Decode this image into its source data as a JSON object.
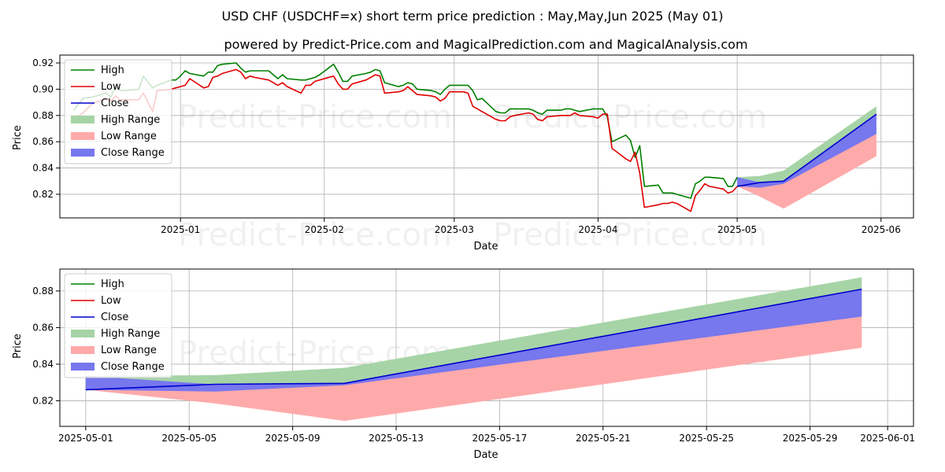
{
  "chart_data": [
    {
      "type": "line",
      "title": "USD CHF (USDCHF=x) short term price prediction : May,May,Jun 2025 (May 01)",
      "subtitle": "powered by Predict-Price.com and MagicalPrediction.com and MagicalAnalysis.com",
      "xlabel": "Date",
      "ylabel": "Price",
      "watermark": "Predict-Price.com",
      "xlim": [
        "2024-12-06",
        "2025-06-08"
      ],
      "ylim": [
        0.802,
        0.926
      ],
      "x_ticks": [
        "2025-01-01",
        "2025-02-01",
        "2025-03-01",
        "2025-04-01",
        "2025-05-01",
        "2025-06-01"
      ],
      "x_tick_labels": [
        "2025-01",
        "2025-02",
        "2025-03",
        "2025-04",
        "2025-05",
        "2025-06"
      ],
      "y_ticks": [
        0.82,
        0.84,
        0.86,
        0.88,
        0.9,
        0.92
      ],
      "y_tick_labels": [
        "0.82",
        "0.84",
        "0.86",
        "0.88",
        "0.90",
        "0.92"
      ],
      "grid": true,
      "legend_position": "top-left",
      "legend": [
        "High",
        "Low",
        "Close",
        "High Range",
        "Low Range",
        "Close Range"
      ],
      "colors": {
        "high": "#008000",
        "low": "#e00000",
        "close": "#0000cc",
        "high_range": "#a6d4a6",
        "low_range": "#ffaaaa",
        "close_range": "#7777ee"
      },
      "series": [
        {
          "name": "High",
          "x": [
            "2024-12-09",
            "2024-12-11",
            "2024-12-13",
            "2024-12-16",
            "2024-12-17",
            "2024-12-18",
            "2024-12-19",
            "2024-12-20",
            "2024-12-23",
            "2024-12-24",
            "2024-12-26",
            "2024-12-27",
            "2024-12-30",
            "2024-12-31",
            "2025-01-01",
            "2025-01-02",
            "2025-01-03",
            "2025-01-06",
            "2025-01-07",
            "2025-01-08",
            "2025-01-09",
            "2025-01-10",
            "2025-01-13",
            "2025-01-14",
            "2025-01-15",
            "2025-01-16",
            "2025-01-17",
            "2025-01-20",
            "2025-01-21",
            "2025-01-22",
            "2025-01-23",
            "2025-01-24",
            "2025-01-27",
            "2025-01-28",
            "2025-01-29",
            "2025-01-30",
            "2025-01-31",
            "2025-02-03",
            "2025-02-04",
            "2025-02-05",
            "2025-02-06",
            "2025-02-07",
            "2025-02-10",
            "2025-02-11",
            "2025-02-12",
            "2025-02-13",
            "2025-02-14",
            "2025-02-17",
            "2025-02-18",
            "2025-02-19",
            "2025-02-20",
            "2025-02-21",
            "2025-02-24",
            "2025-02-25",
            "2025-02-26",
            "2025-02-27",
            "2025-02-28",
            "2025-03-03",
            "2025-03-04",
            "2025-03-05",
            "2025-03-06",
            "2025-03-07",
            "2025-03-10",
            "2025-03-11",
            "2025-03-12",
            "2025-03-13",
            "2025-03-14",
            "2025-03-17",
            "2025-03-18",
            "2025-03-19",
            "2025-03-20",
            "2025-03-21",
            "2025-03-24",
            "2025-03-25",
            "2025-03-26",
            "2025-03-27",
            "2025-03-28",
            "2025-03-31",
            "2025-04-01",
            "2025-04-02",
            "2025-04-03",
            "2025-04-04",
            "2025-04-07",
            "2025-04-08",
            "2025-04-09",
            "2025-04-10",
            "2025-04-11",
            "2025-04-14",
            "2025-04-15",
            "2025-04-16",
            "2025-04-17",
            "2025-04-18",
            "2025-04-21",
            "2025-04-22",
            "2025-04-23",
            "2025-04-24",
            "2025-04-25",
            "2025-04-28",
            "2025-04-29",
            "2025-04-30",
            "2025-05-01"
          ],
          "values": [
            0.884,
            0.893,
            0.894,
            0.897,
            0.894,
            0.902,
            0.899,
            0.899,
            0.9,
            0.91,
            0.901,
            0.903,
            0.907,
            0.907,
            0.91,
            0.914,
            0.912,
            0.91,
            0.913,
            0.913,
            0.918,
            0.919,
            0.92,
            0.916,
            0.913,
            0.914,
            0.914,
            0.914,
            0.911,
            0.908,
            0.911,
            0.908,
            0.907,
            0.907,
            0.908,
            0.909,
            0.911,
            0.919,
            0.913,
            0.906,
            0.906,
            0.91,
            0.912,
            0.913,
            0.915,
            0.914,
            0.905,
            0.902,
            0.903,
            0.905,
            0.904,
            0.9,
            0.899,
            0.898,
            0.896,
            0.9,
            0.903,
            0.903,
            0.903,
            0.899,
            0.892,
            0.893,
            0.883,
            0.882,
            0.882,
            0.885,
            0.885,
            0.885,
            0.884,
            0.882,
            0.881,
            0.884,
            0.884,
            0.885,
            0.885,
            0.884,
            0.883,
            0.885,
            0.885,
            0.885,
            0.879,
            0.86,
            0.865,
            0.861,
            0.848,
            0.857,
            0.826,
            0.827,
            0.821,
            0.821,
            0.821,
            0.82,
            0.817,
            0.828,
            0.83,
            0.833,
            0.833,
            0.832,
            0.826,
            0.826,
            0.833
          ]
        },
        {
          "name": "Low",
          "x": [
            "2024-12-09",
            "2024-12-11",
            "2024-12-13",
            "2024-12-16",
            "2024-12-17",
            "2024-12-18",
            "2024-12-19",
            "2024-12-20",
            "2024-12-23",
            "2024-12-24",
            "2024-12-26",
            "2024-12-27",
            "2024-12-30",
            "2024-12-31",
            "2025-01-01",
            "2025-01-02",
            "2025-01-03",
            "2025-01-06",
            "2025-01-07",
            "2025-01-08",
            "2025-01-09",
            "2025-01-10",
            "2025-01-13",
            "2025-01-14",
            "2025-01-15",
            "2025-01-16",
            "2025-01-17",
            "2025-01-20",
            "2025-01-21",
            "2025-01-22",
            "2025-01-23",
            "2025-01-24",
            "2025-01-27",
            "2025-01-28",
            "2025-01-29",
            "2025-01-30",
            "2025-01-31",
            "2025-02-03",
            "2025-02-04",
            "2025-02-05",
            "2025-02-06",
            "2025-02-07",
            "2025-02-10",
            "2025-02-11",
            "2025-02-12",
            "2025-02-13",
            "2025-02-14",
            "2025-02-17",
            "2025-02-18",
            "2025-02-19",
            "2025-02-20",
            "2025-02-21",
            "2025-02-24",
            "2025-02-25",
            "2025-02-26",
            "2025-02-27",
            "2025-02-28",
            "2025-03-03",
            "2025-03-04",
            "2025-03-05",
            "2025-03-06",
            "2025-03-07",
            "2025-03-10",
            "2025-03-11",
            "2025-03-12",
            "2025-03-13",
            "2025-03-14",
            "2025-03-17",
            "2025-03-18",
            "2025-03-19",
            "2025-03-20",
            "2025-03-21",
            "2025-03-24",
            "2025-03-25",
            "2025-03-26",
            "2025-03-27",
            "2025-03-28",
            "2025-03-31",
            "2025-04-01",
            "2025-04-02",
            "2025-04-03",
            "2025-04-04",
            "2025-04-07",
            "2025-04-08",
            "2025-04-09",
            "2025-04-10",
            "2025-04-11",
            "2025-04-14",
            "2025-04-15",
            "2025-04-16",
            "2025-04-17",
            "2025-04-18",
            "2025-04-21",
            "2025-04-22",
            "2025-04-23",
            "2025-04-24",
            "2025-04-25",
            "2025-04-28",
            "2025-04-29",
            "2025-04-30",
            "2025-05-01"
          ],
          "values": [
            0.877,
            0.882,
            0.889,
            0.893,
            0.891,
            0.895,
            0.892,
            0.892,
            0.892,
            0.897,
            0.883,
            0.899,
            0.9,
            0.901,
            0.902,
            0.903,
            0.908,
            0.901,
            0.902,
            0.909,
            0.91,
            0.912,
            0.915,
            0.913,
            0.908,
            0.91,
            0.909,
            0.907,
            0.905,
            0.903,
            0.905,
            0.902,
            0.897,
            0.903,
            0.903,
            0.906,
            0.907,
            0.91,
            0.904,
            0.9,
            0.9,
            0.904,
            0.907,
            0.909,
            0.911,
            0.91,
            0.897,
            0.898,
            0.899,
            0.902,
            0.899,
            0.896,
            0.895,
            0.894,
            0.891,
            0.893,
            0.898,
            0.898,
            0.897,
            0.887,
            0.885,
            0.883,
            0.877,
            0.876,
            0.876,
            0.879,
            0.88,
            0.882,
            0.881,
            0.877,
            0.876,
            0.879,
            0.88,
            0.88,
            0.88,
            0.882,
            0.88,
            0.879,
            0.878,
            0.881,
            0.881,
            0.855,
            0.847,
            0.845,
            0.852,
            0.836,
            0.81,
            0.812,
            0.813,
            0.813,
            0.814,
            0.813,
            0.807,
            0.819,
            0.823,
            0.828,
            0.826,
            0.824,
            0.821,
            0.822,
            0.826
          ]
        },
        {
          "name": "Close",
          "x": [
            "2025-05-01",
            "2025-05-06",
            "2025-05-11",
            "2025-05-31"
          ],
          "values": [
            0.826,
            0.829,
            0.83,
            0.881
          ]
        }
      ],
      "ranges": [
        {
          "name": "High Range",
          "x": [
            "2025-05-01",
            "2025-05-06",
            "2025-05-11",
            "2025-05-31"
          ],
          "upper": [
            0.833,
            0.834,
            0.838,
            0.887
          ],
          "lower": [
            0.826,
            0.829,
            0.83,
            0.881
          ]
        },
        {
          "name": "Low Range",
          "x": [
            "2025-05-01",
            "2025-05-06",
            "2025-05-11",
            "2025-05-31"
          ],
          "upper": [
            0.826,
            0.829,
            0.83,
            0.866
          ],
          "lower": [
            0.826,
            0.818,
            0.809,
            0.849
          ]
        },
        {
          "name": "Close Range",
          "x": [
            "2025-05-01",
            "2025-05-06",
            "2025-05-11",
            "2025-05-31"
          ],
          "upper": [
            0.833,
            0.829,
            0.83,
            0.881
          ],
          "lower": [
            0.826,
            0.825,
            0.828,
            0.866
          ]
        }
      ]
    },
    {
      "type": "line",
      "xlabel": "Date",
      "ylabel": "Price",
      "watermark": "Predict-Price.com",
      "xlim": [
        "2025-04-30",
        "2025-06-02"
      ],
      "ylim": [
        0.806,
        0.892
      ],
      "x_ticks": [
        "2025-05-01",
        "2025-05-05",
        "2025-05-09",
        "2025-05-13",
        "2025-05-17",
        "2025-05-21",
        "2025-05-25",
        "2025-05-29",
        "2025-06-01"
      ],
      "x_tick_labels": [
        "2025-05-01",
        "2025-05-05",
        "2025-05-09",
        "2025-05-13",
        "2025-05-17",
        "2025-05-21",
        "2025-05-25",
        "2025-05-29",
        "2025-06-01"
      ],
      "y_ticks": [
        0.82,
        0.84,
        0.86,
        0.88
      ],
      "y_tick_labels": [
        "0.82",
        "0.84",
        "0.86",
        "0.88"
      ],
      "grid": true,
      "legend_position": "top-left",
      "legend": [
        "High",
        "Low",
        "Close",
        "High Range",
        "Low Range",
        "Close Range"
      ],
      "colors": {
        "high": "#008000",
        "low": "#e00000",
        "close": "#0000cc",
        "high_range": "#a6d4a6",
        "low_range": "#ffaaaa",
        "close_range": "#7777ee"
      },
      "series": [
        {
          "name": "Close",
          "x": [
            "2025-05-01",
            "2025-05-06",
            "2025-05-11",
            "2025-05-31"
          ],
          "values": [
            0.826,
            0.829,
            0.8295,
            0.881
          ]
        }
      ],
      "ranges": [
        {
          "name": "High Range",
          "x": [
            "2025-05-01",
            "2025-05-06",
            "2025-05-11",
            "2025-05-31"
          ],
          "upper": [
            0.8335,
            0.834,
            0.838,
            0.8875
          ],
          "lower": [
            0.826,
            0.829,
            0.8295,
            0.881
          ]
        },
        {
          "name": "Low Range",
          "x": [
            "2025-05-01",
            "2025-05-06",
            "2025-05-11",
            "2025-05-31"
          ],
          "upper": [
            0.826,
            0.829,
            0.8295,
            0.866
          ],
          "lower": [
            0.826,
            0.8185,
            0.809,
            0.849
          ]
        },
        {
          "name": "Close Range",
          "x": [
            "2025-05-01",
            "2025-05-06",
            "2025-05-11",
            "2025-05-31"
          ],
          "upper": [
            0.8335,
            0.829,
            0.8295,
            0.881
          ],
          "lower": [
            0.826,
            0.825,
            0.8285,
            0.866
          ]
        }
      ]
    }
  ]
}
